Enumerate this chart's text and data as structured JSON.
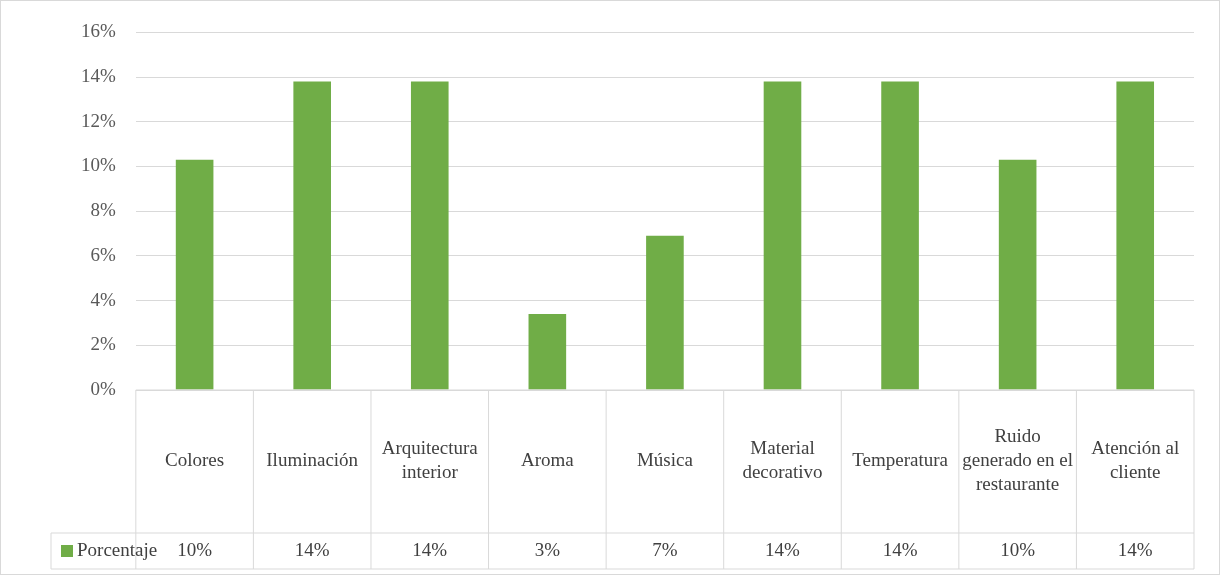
{
  "chart_data": {
    "type": "bar",
    "categories": [
      "Colores",
      "Iluminación",
      "Arquitectura interior",
      "Aroma",
      "Música",
      "Material decorativo",
      "Temperatura",
      "Ruido generado en el restaurante",
      "Atención al cliente"
    ],
    "series": [
      {
        "name": "Porcentaje",
        "color": "#70ad47",
        "values": [
          10.3,
          13.8,
          13.8,
          3.4,
          6.9,
          13.8,
          13.8,
          10.3,
          13.8
        ],
        "value_labels": [
          "10%",
          "14%",
          "14%",
          "3%",
          "7%",
          "14%",
          "14%",
          "10%",
          "14%"
        ]
      }
    ],
    "ylim": [
      0,
      16
    ],
    "yticks": [
      {
        "value": 0,
        "label": "0%"
      },
      {
        "value": 2,
        "label": "2%"
      },
      {
        "value": 4,
        "label": "4%"
      },
      {
        "value": 6,
        "label": "6%"
      },
      {
        "value": 8,
        "label": "8%"
      },
      {
        "value": 10,
        "label": "10%"
      },
      {
        "value": 12,
        "label": "12%"
      },
      {
        "value": 14,
        "label": "14%"
      },
      {
        "value": 16,
        "label": "16%"
      }
    ],
    "grid": "y",
    "legend": "bottom"
  }
}
